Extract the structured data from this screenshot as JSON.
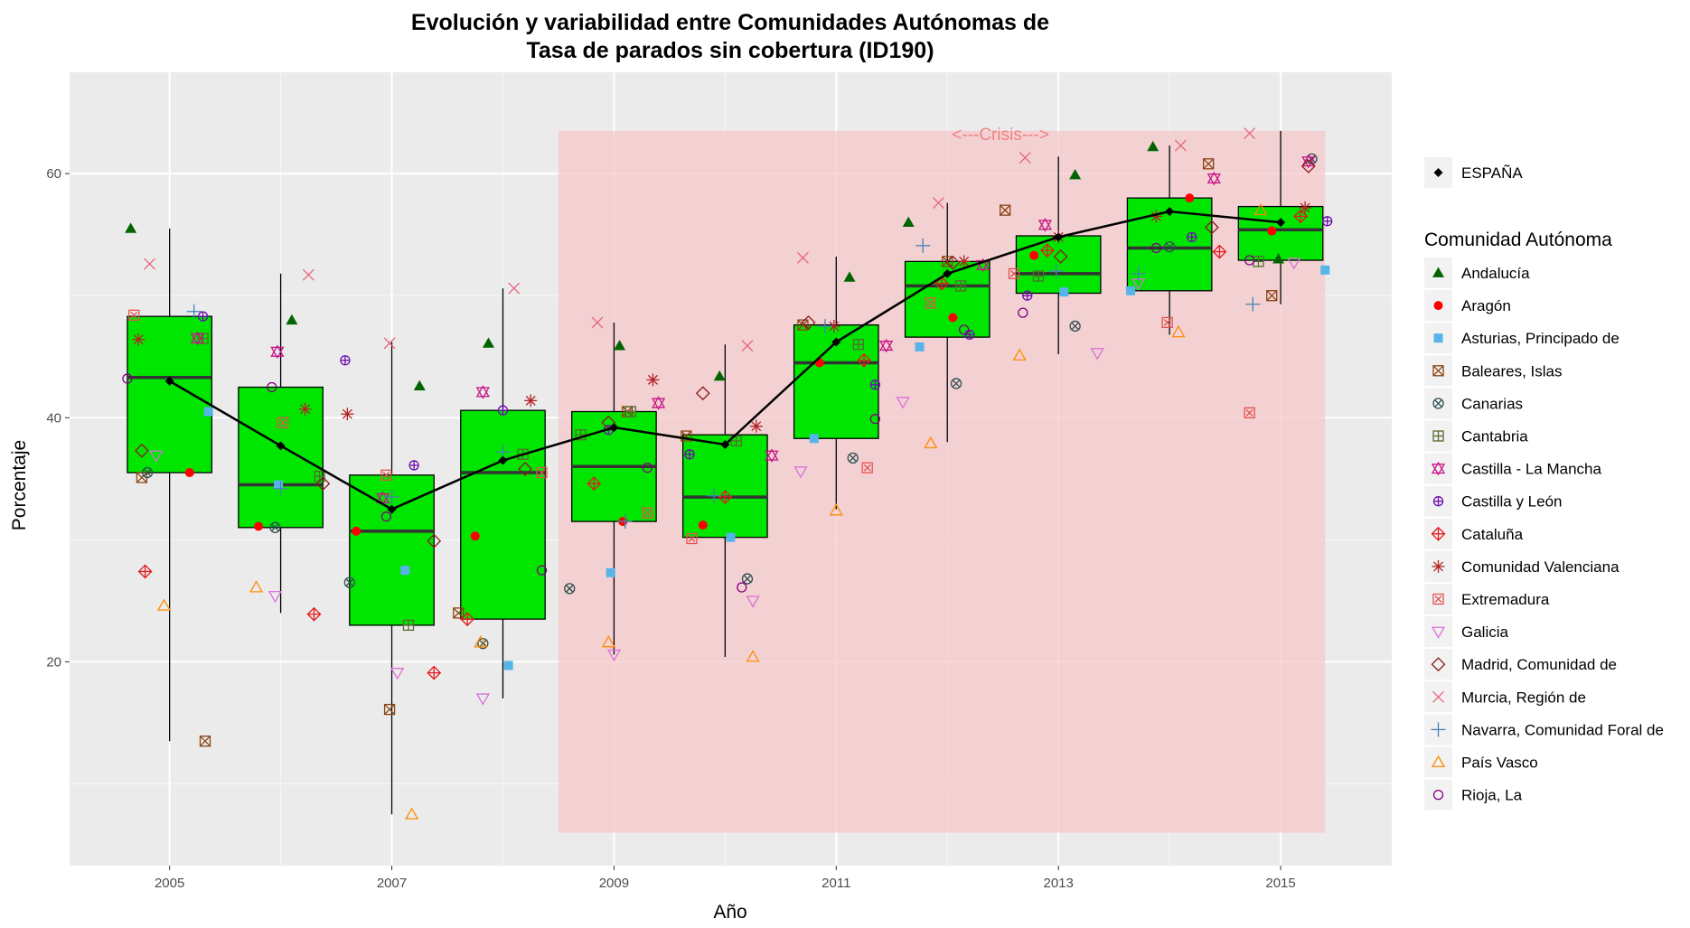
{
  "chart_data": {
    "type": "box",
    "title_line1": "Evolución y variabilidad entre Comunidades Autónomas de",
    "title_line2": "Tasa de parados sin cobertura (ID190)",
    "xlabel": "Año",
    "ylabel": "Porcentaje",
    "x_ticks": [
      2005,
      2007,
      2009,
      2011,
      2013,
      2015
    ],
    "y_ticks": [
      20,
      40,
      60
    ],
    "xlim": [
      2004.1,
      2016.0
    ],
    "ylim": [
      3.3,
      68.3
    ],
    "grid": true,
    "background": "#ebebeb",
    "box_fill": "#00e600",
    "crisis_band": {
      "x_from": 2008.5,
      "x_to": 2015.4,
      "y_from": 6,
      "y_to": 63.5,
      "label": "<---Crisis--->",
      "color": "#f7c6c9",
      "label_color": "#f08080"
    },
    "boxes": [
      {
        "year": 2005,
        "min": 13.5,
        "q1": 35.5,
        "median": 43.3,
        "q3": 48.3,
        "max": 55.5
      },
      {
        "year": 2006,
        "min": 24.0,
        "q1": 31.0,
        "median": 34.5,
        "q3": 42.5,
        "max": 51.8
      },
      {
        "year": 2007,
        "min": 7.5,
        "q1": 23.0,
        "median": 30.7,
        "q3": 35.3,
        "max": 46.2
      },
      {
        "year": 2008,
        "min": 17.0,
        "q1": 23.5,
        "median": 35.5,
        "q3": 40.6,
        "max": 50.6
      },
      {
        "year": 2009,
        "min": 20.6,
        "q1": 31.5,
        "median": 36.0,
        "q3": 40.5,
        "max": 47.8
      },
      {
        "year": 2010,
        "min": 20.4,
        "q1": 30.2,
        "median": 33.5,
        "q3": 38.6,
        "max": 46.0
      },
      {
        "year": 2011,
        "min": 32.5,
        "q1": 38.3,
        "median": 44.5,
        "q3": 47.6,
        "max": 53.2
      },
      {
        "year": 2012,
        "min": 38.0,
        "q1": 46.6,
        "median": 50.8,
        "q3": 52.8,
        "max": 57.6
      },
      {
        "year": 2013,
        "min": 45.2,
        "q1": 50.2,
        "median": 51.8,
        "q3": 54.9,
        "max": 61.4
      },
      {
        "year": 2014,
        "min": 46.8,
        "q1": 50.4,
        "median": 53.9,
        "q3": 58.0,
        "max": 62.3
      },
      {
        "year": 2015,
        "min": 49.3,
        "q1": 52.9,
        "median": 55.4,
        "q3": 57.3,
        "max": 63.5
      }
    ],
    "espana": {
      "name": "ESPAÑA",
      "color": "#000000",
      "x": [
        2005,
        2006,
        2007,
        2008,
        2009,
        2010,
        2011,
        2012,
        2013,
        2014,
        2015
      ],
      "y": [
        43.0,
        37.7,
        32.5,
        36.5,
        39.2,
        37.8,
        46.2,
        51.8,
        54.8,
        56.9,
        56.0
      ]
    },
    "legend_title": "Comunidad Autónoma",
    "series": [
      {
        "name": "Andalucía",
        "shape": "triangle-filled",
        "color": "#006400",
        "x": [
          2004.65,
          2006.1,
          2007.25,
          2007.87,
          2009.05,
          2009.95,
          2011.12,
          2011.65,
          2013.15,
          2013.85,
          2014.98
        ],
        "y": [
          55.5,
          48.0,
          42.6,
          46.1,
          45.9,
          43.4,
          51.5,
          56.0,
          59.9,
          62.2,
          53.0
        ]
      },
      {
        "name": "Aragón",
        "shape": "circle-filled",
        "color": "#ff0000",
        "x": [
          2005.18,
          2005.8,
          2006.68,
          2007.75,
          2009.08,
          2009.8,
          2010.85,
          2012.05,
          2012.78,
          2014.18,
          2014.92
        ],
        "y": [
          35.5,
          31.1,
          30.7,
          30.3,
          31.5,
          31.2,
          44.5,
          48.2,
          53.3,
          58.0,
          55.3
        ]
      },
      {
        "name": "Asturias, Principado de",
        "shape": "square-filled",
        "color": "#56b4e9",
        "x": [
          2005.35,
          2005.98,
          2007.12,
          2008.05,
          2008.97,
          2010.05,
          2010.8,
          2011.75,
          2013.05,
          2013.65,
          2015.4
        ],
        "y": [
          40.5,
          34.5,
          27.5,
          19.7,
          27.3,
          30.2,
          38.3,
          45.8,
          50.3,
          50.4,
          52.1
        ]
      },
      {
        "name": "Baleares, Islas",
        "shape": "square-x",
        "color": "#8b4513",
        "x": [
          2004.75,
          2005.32,
          2006.98,
          2007.6,
          2009.12,
          2009.65,
          2010.7,
          2012.0,
          2012.52,
          2014.35,
          2014.92
        ],
        "y": [
          35.1,
          13.5,
          16.1,
          24.0,
          40.5,
          38.5,
          47.6,
          52.8,
          57.0,
          60.8,
          50.0
        ]
      },
      {
        "name": "Canarias",
        "shape": "circle-x",
        "color": "#2f4f4f",
        "x": [
          2004.8,
          2005.95,
          2006.62,
          2007.82,
          2008.6,
          2010.2,
          2011.15,
          2012.08,
          2013.15,
          2014.0,
          2015.28
        ],
        "y": [
          35.5,
          31.0,
          26.5,
          21.5,
          26.0,
          26.8,
          36.7,
          42.8,
          47.5,
          54.0,
          61.2
        ]
      },
      {
        "name": "Cantabria",
        "shape": "square-plus",
        "color": "#556b2f",
        "x": [
          2005.3,
          2006.35,
          2007.15,
          2008.18,
          2008.7,
          2009.15,
          2010.1,
          2011.2,
          2012.12,
          2012.82,
          2014.8
        ],
        "y": [
          46.5,
          35.2,
          23.0,
          37.0,
          38.6,
          40.5,
          38.1,
          46.0,
          50.8,
          51.6,
          52.8
        ]
      },
      {
        "name": "Castilla - La Mancha",
        "shape": "star-david",
        "color": "#c71585",
        "x": [
          2005.25,
          2005.97,
          2006.92,
          2007.82,
          2009.4,
          2010.42,
          2011.45,
          2012.32,
          2012.88,
          2014.4,
          2015.25
        ],
        "y": [
          46.5,
          45.4,
          33.4,
          42.1,
          41.2,
          36.9,
          45.9,
          52.5,
          55.8,
          59.6,
          61.0
        ]
      },
      {
        "name": "Castilla y León",
        "shape": "circle-plus",
        "color": "#6a0dad",
        "x": [
          2005.3,
          2006.58,
          2007.2,
          2008.0,
          2008.95,
          2009.68,
          2011.35,
          2012.2,
          2012.72,
          2014.2,
          2015.42
        ],
        "y": [
          48.3,
          44.7,
          36.1,
          40.6,
          39.0,
          37.0,
          42.7,
          46.8,
          50.0,
          54.8,
          56.1
        ]
      },
      {
        "name": "Cataluña",
        "shape": "diamond-plus",
        "color": "#e31a1c",
        "x": [
          2004.78,
          2006.3,
          2007.38,
          2007.68,
          2008.82,
          2010.0,
          2011.25,
          2011.95,
          2012.9,
          2014.45,
          2015.18
        ],
        "y": [
          27.4,
          23.9,
          19.1,
          23.5,
          34.6,
          33.5,
          44.7,
          51.0,
          53.7,
          53.6,
          56.5
        ]
      },
      {
        "name": "Comunidad Valenciana",
        "shape": "asterisk",
        "color": "#b22222",
        "x": [
          2004.72,
          2006.22,
          2006.6,
          2008.25,
          2009.35,
          2010.28,
          2010.98,
          2012.15,
          2013.0,
          2013.88,
          2015.22
        ],
        "y": [
          46.4,
          40.7,
          40.3,
          41.4,
          43.1,
          39.3,
          47.5,
          52.8,
          54.8,
          56.5,
          57.2
        ]
      },
      {
        "name": "Extremadura",
        "shape": "square-x-box",
        "color": "#e55050",
        "x": [
          2004.68,
          2006.02,
          2006.95,
          2008.35,
          2009.3,
          2009.7,
          2011.28,
          2011.85,
          2012.6,
          2013.98,
          2014.72
        ],
        "y": [
          48.4,
          39.6,
          35.3,
          35.5,
          32.2,
          30.1,
          35.9,
          49.4,
          51.8,
          47.8,
          40.4
        ]
      },
      {
        "name": "Galicia",
        "shape": "triangle-down",
        "color": "#da70d6",
        "x": [
          2004.88,
          2005.95,
          2007.05,
          2007.82,
          2009.0,
          2010.25,
          2010.68,
          2011.6,
          2013.35,
          2013.72,
          2015.12
        ],
        "y": [
          36.9,
          25.4,
          19.1,
          17.0,
          20.6,
          25.0,
          35.6,
          41.3,
          45.3,
          51.0,
          52.7
        ]
      },
      {
        "name": "Madrid, Comunidad de",
        "shape": "diamond-open",
        "color": "#8b1a1a",
        "x": [
          2004.75,
          2006.38,
          2007.38,
          2008.2,
          2008.95,
          2009.8,
          2010.75,
          2012.05,
          2013.02,
          2014.38,
          2015.25
        ],
        "y": [
          37.3,
          34.6,
          29.9,
          35.8,
          39.6,
          42.0,
          47.8,
          52.7,
          53.2,
          55.6,
          60.6
        ]
      },
      {
        "name": "Murcia, Región de",
        "shape": "x-cross",
        "color": "#e8647a",
        "x": [
          2004.82,
          2006.25,
          2006.98,
          2008.1,
          2008.85,
          2010.2,
          2010.7,
          2011.92,
          2012.7,
          2014.1,
          2014.72
        ],
        "y": [
          52.6,
          51.7,
          46.1,
          50.6,
          47.8,
          45.9,
          53.1,
          57.6,
          61.3,
          62.3,
          63.3
        ]
      },
      {
        "name": "Navarra, Comunidad Foral de",
        "shape": "plus",
        "color": "#4682b4",
        "x": [
          2005.22,
          2006.0,
          2007.0,
          2008.0,
          2009.1,
          2009.9,
          2010.9,
          2011.78,
          2012.98,
          2013.72,
          2014.75
        ],
        "y": [
          48.7,
          34.2,
          33.5,
          37.2,
          31.5,
          33.6,
          47.5,
          54.1,
          52.0,
          51.8,
          49.3
        ]
      },
      {
        "name": "País Vasco",
        "shape": "triangle-open",
        "color": "#ff8c00",
        "x": [
          2004.95,
          2005.78,
          2007.18,
          2007.8,
          2008.95,
          2010.25,
          2011.0,
          2011.85,
          2012.65,
          2014.08,
          2014.82
        ],
        "y": [
          24.6,
          26.1,
          7.5,
          21.6,
          21.6,
          20.4,
          32.4,
          37.9,
          45.1,
          47.0,
          57.0
        ]
      },
      {
        "name": "Rioja, La",
        "shape": "circle-open",
        "color": "#800080",
        "x": [
          2004.62,
          2005.92,
          2006.95,
          2008.35,
          2009.3,
          2010.15,
          2011.35,
          2012.15,
          2012.68,
          2013.88,
          2014.72
        ],
        "y": [
          43.2,
          42.5,
          31.9,
          27.5,
          35.9,
          26.1,
          39.9,
          47.2,
          48.6,
          53.9,
          52.9
        ]
      }
    ]
  }
}
